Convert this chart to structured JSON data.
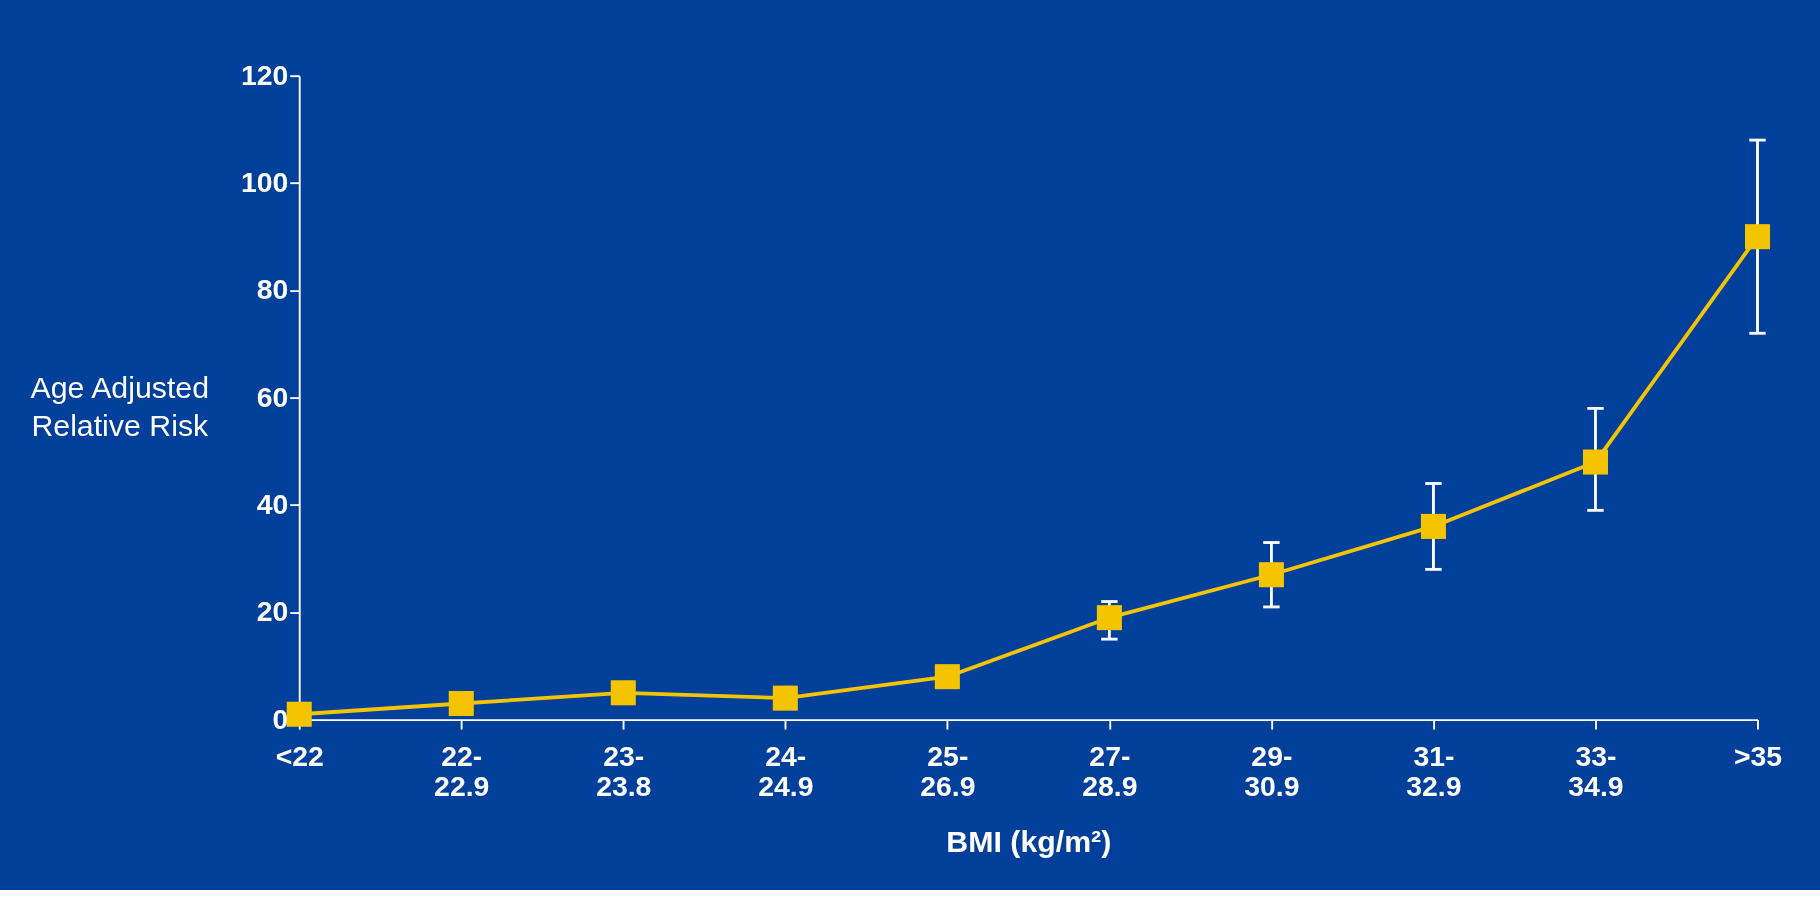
{
  "chart_data": {
    "type": "line",
    "xlabel": "BMI (kg/m²)",
    "ylabel": "Age Adjusted Relative Risk",
    "categories": [
      "<22",
      "22- 22.9",
      "23- 23.8",
      "24- 24.9",
      "25- 26.9",
      "27- 28.9",
      "29- 30.9",
      "31- 32.9",
      "33- 34.9",
      ">35"
    ],
    "series": [
      {
        "color": "#f5c400",
        "values": [
          1,
          3,
          5,
          4,
          8,
          19,
          27,
          36,
          48,
          90
        ],
        "errors": [
          null,
          null,
          null,
          null,
          null,
          [
            15,
            22
          ],
          [
            21,
            33
          ],
          [
            28,
            44
          ],
          [
            39,
            58
          ],
          [
            72,
            108
          ]
        ]
      }
    ],
    "ylim": [
      0,
      120
    ],
    "yticks": [
      0,
      20,
      40,
      60,
      80,
      100,
      120
    ],
    "grid": false,
    "marker": "square",
    "line_style": "solid"
  }
}
